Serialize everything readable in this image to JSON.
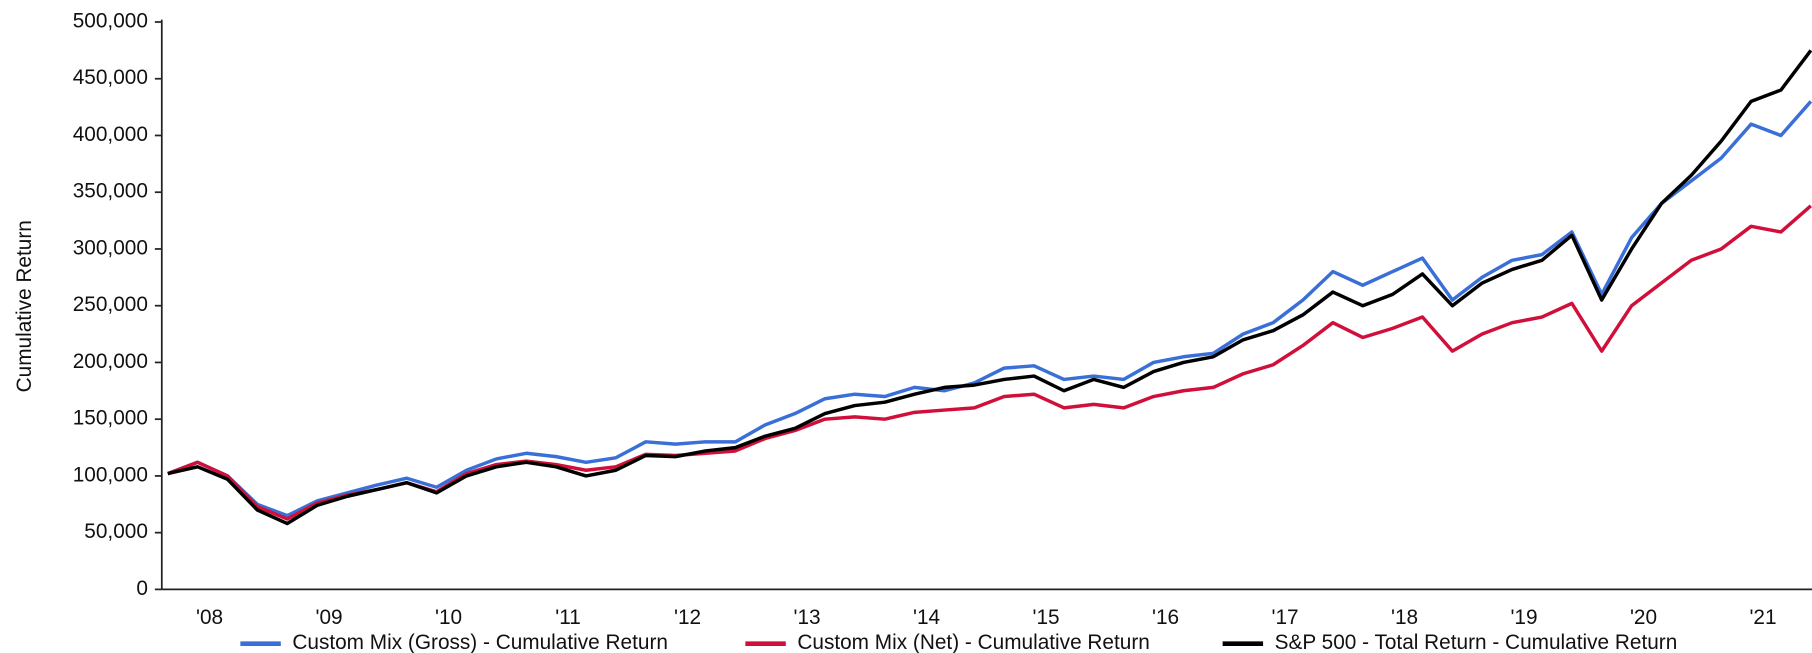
{
  "chart_data": {
    "type": "line",
    "y_label": "Cumulative Return",
    "x": [
      2008.15,
      2008.4,
      2008.65,
      2008.9,
      2009.15,
      2009.4,
      2009.65,
      2009.9,
      2010.15,
      2010.4,
      2010.65,
      2010.9,
      2011.15,
      2011.4,
      2011.65,
      2011.9,
      2012.15,
      2012.4,
      2012.65,
      2012.9,
      2013.15,
      2013.4,
      2013.65,
      2013.9,
      2014.15,
      2014.4,
      2014.65,
      2014.9,
      2015.15,
      2015.4,
      2015.65,
      2015.9,
      2016.15,
      2016.4,
      2016.65,
      2016.9,
      2017.15,
      2017.4,
      2017.65,
      2017.9,
      2018.15,
      2018.4,
      2018.65,
      2018.9,
      2019.15,
      2019.4,
      2019.65,
      2019.9,
      2020.15,
      2020.4,
      2020.65,
      2020.9,
      2021.15,
      2021.4,
      2021.65,
      2021.9
    ],
    "series": [
      {
        "name": "Custom Mix (Gross) - Cumulative Return",
        "color": "#3a6fd8",
        "values": [
          102000,
          112000,
          100000,
          75000,
          65000,
          78000,
          85000,
          92000,
          98000,
          90000,
          105000,
          115000,
          120000,
          117000,
          112000,
          116000,
          130000,
          128000,
          130000,
          130000,
          145000,
          155000,
          168000,
          172000,
          170000,
          178000,
          175000,
          182000,
          195000,
          197000,
          185000,
          188000,
          185000,
          200000,
          205000,
          208000,
          225000,
          235000,
          255000,
          280000,
          268000,
          280000,
          292000,
          255000,
          275000,
          290000,
          295000,
          315000,
          260000,
          310000,
          340000,
          360000,
          380000,
          410000,
          400000,
          430000
        ]
      },
      {
        "name": "Custom Mix (Net) - Cumulative Return",
        "color": "#d0103a",
        "values": [
          102000,
          112000,
          100000,
          73000,
          62000,
          76000,
          83000,
          88000,
          94000,
          86000,
          102000,
          110000,
          113000,
          110000,
          105000,
          108000,
          119000,
          118000,
          120000,
          122000,
          133000,
          140000,
          150000,
          152000,
          150000,
          156000,
          158000,
          160000,
          170000,
          172000,
          160000,
          163000,
          160000,
          170000,
          175000,
          178000,
          190000,
          198000,
          215000,
          235000,
          222000,
          230000,
          240000,
          210000,
          225000,
          235000,
          240000,
          252000,
          210000,
          250000,
          270000,
          290000,
          300000,
          320000,
          315000,
          338000
        ]
      },
      {
        "name": "S&P 500 - Total Return - Cumulative Return",
        "color": "#000000",
        "values": [
          102000,
          108000,
          97000,
          70000,
          58000,
          74000,
          82000,
          88000,
          94000,
          85000,
          100000,
          108000,
          112000,
          108000,
          100000,
          105000,
          118000,
          117000,
          122000,
          125000,
          135000,
          142000,
          155000,
          162000,
          165000,
          172000,
          178000,
          180000,
          185000,
          188000,
          175000,
          185000,
          178000,
          192000,
          200000,
          205000,
          220000,
          228000,
          242000,
          262000,
          250000,
          260000,
          278000,
          250000,
          270000,
          282000,
          290000,
          312000,
          255000,
          300000,
          340000,
          365000,
          395000,
          430000,
          440000,
          475000
        ]
      }
    ],
    "xlim": [
      2008.1,
      2021.91
    ],
    "xticks": [
      {
        "value": 2008.5,
        "label": "'08"
      },
      {
        "value": 2009.5,
        "label": "'09"
      },
      {
        "value": 2010.5,
        "label": "'10"
      },
      {
        "value": 2011.5,
        "label": "'11"
      },
      {
        "value": 2012.5,
        "label": "'12"
      },
      {
        "value": 2013.5,
        "label": "'13"
      },
      {
        "value": 2014.5,
        "label": "'14"
      },
      {
        "value": 2015.5,
        "label": "'15"
      },
      {
        "value": 2016.5,
        "label": "'16"
      },
      {
        "value": 2017.5,
        "label": "'17"
      },
      {
        "value": 2018.5,
        "label": "'18"
      },
      {
        "value": 2019.5,
        "label": "'19"
      },
      {
        "value": 2020.5,
        "label": "'20"
      },
      {
        "value": 2021.5,
        "label": "'21"
      }
    ],
    "ylim": [
      0,
      500000
    ],
    "yticks": [
      0,
      {
        "value": 50000,
        "label": "50,000"
      },
      {
        "value": 100000,
        "label": "100,000"
      },
      {
        "value": 150000,
        "label": "150,000"
      },
      {
        "value": 200000,
        "label": "200,000"
      },
      {
        "value": 250000,
        "label": "250,000"
      },
      {
        "value": 300000,
        "label": "300,000"
      },
      {
        "value": 350000,
        "label": "350,000"
      },
      {
        "value": 400000,
        "label": "400,000"
      },
      {
        "value": 450000,
        "label": "450,000"
      },
      {
        "value": 500000,
        "label": "500,000"
      }
    ],
    "legend": "bottom"
  }
}
